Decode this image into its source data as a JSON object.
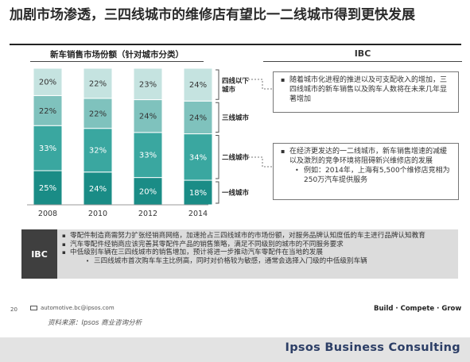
{
  "title": "加剧市场渗透，三四线城市的维修店有望比一二线城市得到更快发展",
  "chart_data": {
    "type": "bar",
    "stacked": true,
    "title": "新车销售市场份额（针对城市分类）",
    "categories": [
      "2008",
      "2010",
      "2012",
      "2014"
    ],
    "series": [
      {
        "name": "一线城市",
        "values": [
          25,
          24,
          20,
          18
        ],
        "labels": [
          "25%",
          "24%",
          "20%",
          "18%"
        ],
        "color": "#1a8c86"
      },
      {
        "name": "二线城市",
        "values": [
          33,
          32,
          33,
          34
        ],
        "labels": [
          "33%",
          "32%",
          "33%",
          "34%"
        ],
        "color": "#3aa7a0"
      },
      {
        "name": "三线城市",
        "values": [
          22,
          22,
          24,
          24
        ],
        "labels": [
          "22%",
          "22%",
          "24%",
          "24%"
        ],
        "color": "#7fc2bd"
      },
      {
        "name": "四线以下城市",
        "values": [
          20,
          22,
          23,
          24
        ],
        "labels": [
          "20%",
          "22%",
          "23%",
          "24%"
        ],
        "color": "#c5e3e0"
      }
    ],
    "legend_placement": "right",
    "grid": false
  },
  "ibc_panel": {
    "heading": "IBC",
    "box1_points": [
      "随着城市化进程的推进以及可支配收入的增加，三四线城市的新车销售以及购车人数将在未来几年显著增加"
    ],
    "box2_points": [
      "在经济更发达的一二线城市，新车销售增速的减缓以及激烈的竞争环境将阻碍新兴维修店的发展"
    ],
    "box2_sub": "例如：2014年，上海有5,500个维修店竞相为250万汽车提供服务"
  },
  "bottom": {
    "label": "IBC",
    "points": [
      "零配件制造商需努力扩张经销商网络，加速抢占三四线城市的市场份额，对服务品牌认知度低的车主进行品牌认知教育",
      "汽车零配件经销商应该完善其零配件产品的销售策略，满足不同级别的城市的不同服务要求",
      "中低级别车辆在三四线城市的销售增加，预计将进一步推动汽车零配件在当地的发展"
    ],
    "sub_point": "三四线城市首次购车车主比例高，同时对价格较为敏感，通常会选择入门级的中低级别车辆"
  },
  "footer": {
    "page_number": "20",
    "email": "automotive.bc@ipsos.com",
    "source": "资料来源：Ipsos 商业咨询分析",
    "tagline": "Build · Compete · Grow",
    "brand": "Ipsos Business Consulting"
  }
}
